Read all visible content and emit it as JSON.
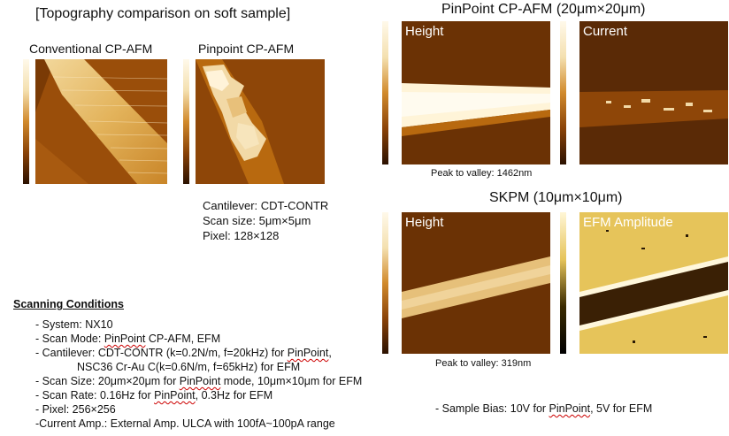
{
  "title_left": "[Topography comparison on soft sample]",
  "conventional_label": "Conventional CP-AFM",
  "pinpoint_label": "Pinpoint CP-AFM",
  "cantilever_info": {
    "line1": "Cantilever: CDT-CONTR",
    "line2": "Scan size: 5μm×5μm",
    "line3": "Pixel: 128×128"
  },
  "pinpoint_title": "PinPoint CP-AFM (20μm×20μm)",
  "skpm_title": "SKPM (10μm×10μm)",
  "panels": {
    "height_top": "Height",
    "current": "Current",
    "height_bottom": "Height",
    "efm": "EFM Amplitude"
  },
  "peak_valley_top": "Peak to valley: 1462nm",
  "peak_valley_bottom": "Peak to valley: 319nm",
  "scanning": {
    "heading": "Scanning Conditions",
    "system": "- System: NX10",
    "scan_mode_prefix": "- Scan Mode: ",
    "scan_mode_pp": "PinPoint",
    "scan_mode_suffix": " CP-AFM, EFM",
    "cantilever_prefix": "- Cantilever: CDT-CONTR (k=0.2N/m, f=20kHz) for ",
    "cantilever_pp": "PinPoint",
    "cantilever_suffix": ",",
    "cantilever_line2": "NSC36 Cr-Au C(k=0.6N/m, f=65kHz) for EFM",
    "scan_size_prefix": "- Scan Size: 20μm×20μm for ",
    "scan_size_pp": "PinPoint",
    "scan_size_suffix": " mode, 10μm×10μm for EFM",
    "scan_rate_prefix": "- Scan Rate: 0.16Hz for ",
    "scan_rate_pp": "PinPoint",
    "scan_rate_suffix": ", 0.3Hz for EFM",
    "pixel": "- Pixel: 256×256",
    "current_amp": "-Current Amp.: External Amp. ULCA with 100fA~100pA range"
  },
  "bias_prefix": "- Sample Bias: 10V for ",
  "bias_pp": "PinPoint",
  "bias_suffix": ", 5V for EFM",
  "colors": {
    "afm_dark": "#5a2a06",
    "afm_mid": "#b8660f",
    "afm_light": "#f5e2b4",
    "efm_yellow": "#e6c45a"
  }
}
